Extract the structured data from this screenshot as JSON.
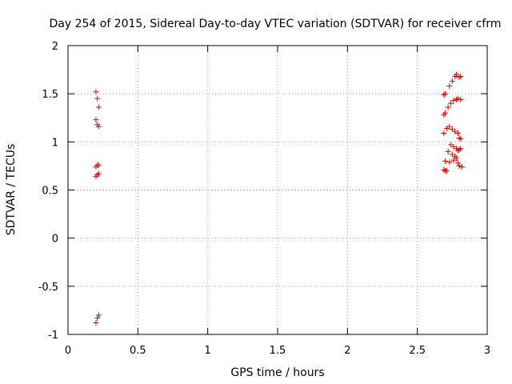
{
  "chart_data": {
    "type": "scatter",
    "title": "Day 254 of 2015, Sidereal Day-to-day VTEC variation (SDTVAR) for receiver cfrm",
    "xlabel": "GPS time / hours",
    "ylabel": "SDTVAR / TECUs",
    "xlim": [
      0,
      3
    ],
    "ylim": [
      -1,
      2
    ],
    "xticks": [
      "0",
      "0.5",
      "1",
      "1.5",
      "2",
      "2.5",
      "3"
    ],
    "yticks": [
      "-1",
      "-0.5",
      "0",
      "0.5",
      "1",
      "1.5",
      "2"
    ],
    "grid": true,
    "marker": "+",
    "marker_color": "#e00000",
    "series": [
      {
        "points": [
          [
            0.2,
            1.52
          ],
          [
            0.21,
            1.45
          ],
          [
            0.22,
            1.36
          ],
          [
            0.2,
            1.23
          ],
          [
            0.21,
            1.18
          ],
          [
            0.22,
            1.16
          ],
          [
            0.21,
            0.76
          ],
          [
            0.2,
            0.74
          ],
          [
            0.22,
            0.76
          ],
          [
            0.21,
            0.66
          ],
          [
            0.2,
            0.64
          ],
          [
            0.22,
            0.67
          ],
          [
            0.22,
            -0.8
          ],
          [
            0.21,
            -0.83
          ],
          [
            0.2,
            -0.88
          ],
          [
            2.69,
            1.49
          ],
          [
            2.7,
            1.5
          ],
          [
            2.73,
            1.58
          ],
          [
            2.75,
            1.63
          ],
          [
            2.77,
            1.68
          ],
          [
            2.78,
            1.7
          ],
          [
            2.8,
            1.67
          ],
          [
            2.81,
            1.68
          ],
          [
            2.69,
            1.28
          ],
          [
            2.7,
            1.3
          ],
          [
            2.72,
            1.36
          ],
          [
            2.74,
            1.4
          ],
          [
            2.76,
            1.43
          ],
          [
            2.78,
            1.44
          ],
          [
            2.79,
            1.45
          ],
          [
            2.81,
            1.44
          ],
          [
            2.69,
            1.09
          ],
          [
            2.71,
            1.14
          ],
          [
            2.73,
            1.16
          ],
          [
            2.75,
            1.13
          ],
          [
            2.77,
            1.11
          ],
          [
            2.79,
            1.09
          ],
          [
            2.8,
            1.04
          ],
          [
            2.81,
            1.03
          ],
          [
            2.74,
            0.97
          ],
          [
            2.76,
            0.95
          ],
          [
            2.78,
            0.93
          ],
          [
            2.79,
            0.91
          ],
          [
            2.8,
            0.92
          ],
          [
            2.81,
            0.93
          ],
          [
            2.72,
            0.9
          ],
          [
            2.75,
            0.87
          ],
          [
            2.77,
            0.85
          ],
          [
            2.78,
            0.83
          ],
          [
            2.7,
            0.8
          ],
          [
            2.73,
            0.79
          ],
          [
            2.76,
            0.81
          ],
          [
            2.79,
            0.78
          ],
          [
            2.8,
            0.75
          ],
          [
            2.82,
            0.74
          ],
          [
            2.69,
            0.71
          ],
          [
            2.7,
            0.7
          ],
          [
            2.71,
            0.7
          ]
        ]
      }
    ]
  }
}
